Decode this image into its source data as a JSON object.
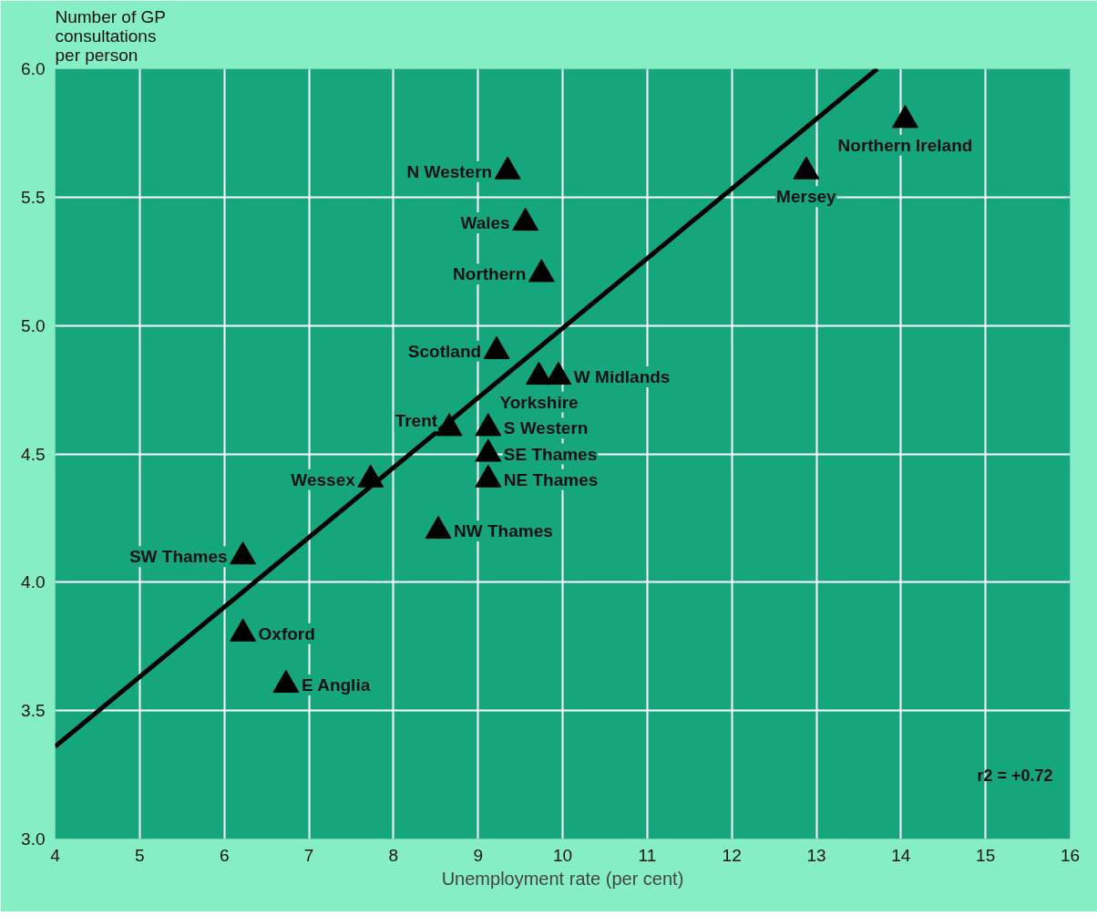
{
  "chart_data": {
    "type": "scatter",
    "xlabel": "Unemployment rate (per cent)",
    "ylabel": "Number of GP\nconsultations\nper person",
    "x": [
      9.35,
      9.56,
      9.75,
      9.22,
      9.95,
      9.72,
      8.66,
      9.12,
      9.12,
      9.12,
      7.73,
      8.53,
      6.22,
      6.22,
      6.73,
      12.88,
      14.05
    ],
    "series": [
      {
        "color": "#000000",
        "values": [
          5.6,
          5.4,
          5.2,
          4.9,
          4.8,
          4.8,
          4.6,
          4.6,
          4.5,
          4.4,
          4.4,
          4.2,
          4.1,
          3.8,
          3.6,
          5.6,
          5.8
        ]
      },
      {
        "type": "line",
        "marker": "none",
        "color": "#000000",
        "x": [
          4,
          13.72
        ],
        "values": [
          3.36,
          6.0
        ]
      }
    ],
    "marker": "triangle",
    "xlim": [
      4,
      16
    ],
    "ylim": [
      3.0,
      6.0
    ],
    "xticks": [
      4,
      5,
      6,
      7,
      8,
      9,
      10,
      11,
      12,
      13,
      14,
      15,
      16
    ],
    "yticks": [
      {
        "value": 3.0,
        "label": "3.0"
      },
      {
        "value": 3.5,
        "label": "3.5"
      },
      {
        "value": 4.0,
        "label": "4.0"
      },
      {
        "value": 4.5,
        "label": "4.5"
      },
      {
        "value": 5.0,
        "label": "5.0"
      },
      {
        "value": 5.5,
        "label": "5.5"
      },
      {
        "value": 6.0,
        "label": "6.0"
      }
    ],
    "grid": true,
    "annotations": [
      {
        "text": "N Western",
        "x": 9.35,
        "y": 5.6
      },
      {
        "text": "Wales",
        "x": 9.56,
        "y": 5.4
      },
      {
        "text": "Northern",
        "x": 9.75,
        "y": 5.2
      },
      {
        "text": "Scotland",
        "x": 9.22,
        "y": 4.9
      },
      {
        "text": "W Midlands",
        "x": 9.95,
        "y": 4.8
      },
      {
        "text": "Yorkshire",
        "x": 9.72,
        "y": 4.8
      },
      {
        "text": "Trent",
        "x": 8.66,
        "y": 4.6
      },
      {
        "text": "S Western",
        "x": 9.12,
        "y": 4.6
      },
      {
        "text": "SE Thames",
        "x": 9.12,
        "y": 4.5
      },
      {
        "text": "NE Thames",
        "x": 9.12,
        "y": 4.4
      },
      {
        "text": "Wessex",
        "x": 7.73,
        "y": 4.4
      },
      {
        "text": "NW Thames",
        "x": 8.53,
        "y": 4.2
      },
      {
        "text": "SW Thames",
        "x": 6.22,
        "y": 4.1
      },
      {
        "text": "Oxford",
        "x": 6.22,
        "y": 3.8
      },
      {
        "text": "E Anglia",
        "x": 6.73,
        "y": 3.6
      },
      {
        "text": "Mersey",
        "x": 12.88,
        "y": 5.6
      },
      {
        "text": "Northern Ireland",
        "x": 14.05,
        "y": 5.8
      },
      "r2 = +0.72"
    ]
  }
}
